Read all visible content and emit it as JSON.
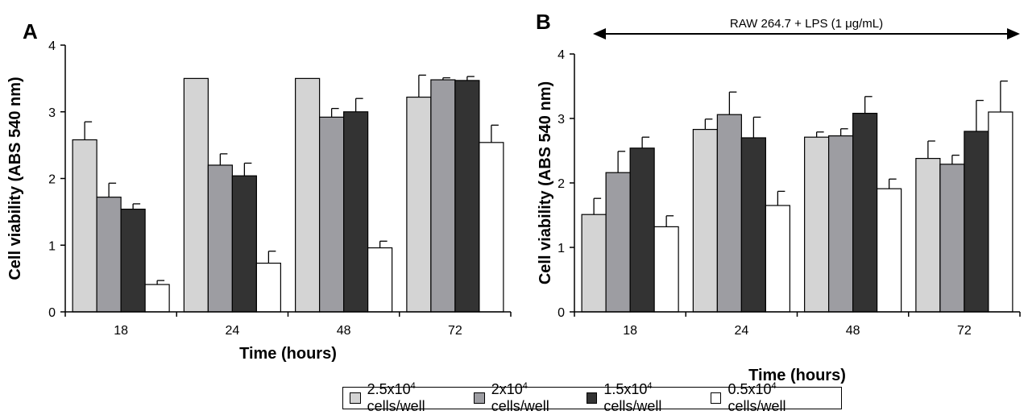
{
  "chart_data": [
    {
      "panel": "A",
      "type": "bar",
      "title": "",
      "xlabel": "Time (hours)",
      "ylabel": "Cell viability (ABS 540 nm)",
      "ylim": [
        0,
        4
      ],
      "yticks": [
        "0",
        "1",
        "2",
        "3",
        "4"
      ],
      "categories": [
        "18",
        "24",
        "48",
        "72"
      ],
      "series": [
        {
          "name": "2.5x10⁴ cells/well",
          "values": [
            2.58,
            3.5,
            3.5,
            3.22
          ],
          "errors": [
            0.27,
            0,
            0,
            0.33
          ]
        },
        {
          "name": "2x10⁴ cells/well",
          "values": [
            1.72,
            2.2,
            2.92,
            3.48
          ],
          "errors": [
            0.21,
            0.17,
            0.13,
            0.03
          ]
        },
        {
          "name": "1.5x10⁴ cells/well",
          "values": [
            1.54,
            2.04,
            3.0,
            3.47
          ],
          "errors": [
            0.08,
            0.19,
            0.2,
            0.06
          ]
        },
        {
          "name": "0.5x10⁴ cells/well",
          "values": [
            0.41,
            0.73,
            0.96,
            2.54
          ],
          "errors": [
            0.06,
            0.18,
            0.1,
            0.26
          ]
        }
      ]
    },
    {
      "panel": "B",
      "type": "bar",
      "title": "",
      "annotation": "RAW 264.7 + LPS (1 μg/mL)",
      "xlabel": "Time (hours)",
      "ylabel": "Cell viability (ABS 540 nm)",
      "ylim": [
        0,
        4
      ],
      "yticks": [
        "0",
        "1",
        "2",
        "3",
        "4"
      ],
      "categories": [
        "18",
        "24",
        "48",
        "72"
      ],
      "series": [
        {
          "name": "2.5x10⁴ cells/well",
          "values": [
            1.51,
            2.83,
            2.71,
            2.38
          ],
          "errors": [
            0.25,
            0.16,
            0.08,
            0.27
          ]
        },
        {
          "name": "2x10⁴ cells/well",
          "values": [
            2.16,
            3.06,
            2.73,
            2.29
          ],
          "errors": [
            0.33,
            0.35,
            0.11,
            0.14
          ]
        },
        {
          "name": "1.5x10⁴ cells/well",
          "values": [
            2.54,
            2.7,
            3.08,
            2.8
          ],
          "errors": [
            0.17,
            0.32,
            0.26,
            0.48
          ]
        },
        {
          "name": "0.5x10⁴ cells/well",
          "values": [
            1.32,
            1.65,
            1.91,
            3.1
          ],
          "errors": [
            0.17,
            0.22,
            0.15,
            0.48
          ]
        }
      ]
    }
  ],
  "panel_labels": [
    "A",
    "B"
  ],
  "colors": [
    "#d4d4d4",
    "#9d9da2",
    "#333333",
    "#ffffff"
  ],
  "legend": {
    "items": [
      {
        "base": "2.5x10",
        "exp": "4",
        "suffix": " cells/well"
      },
      {
        "base": "2x10",
        "exp": "4",
        "suffix": " cells/well"
      },
      {
        "base": "1.5x10",
        "exp": "4",
        "suffix": " cells/well"
      },
      {
        "base": "0.5x10",
        "exp": "4",
        "suffix": " cells/well"
      }
    ]
  }
}
